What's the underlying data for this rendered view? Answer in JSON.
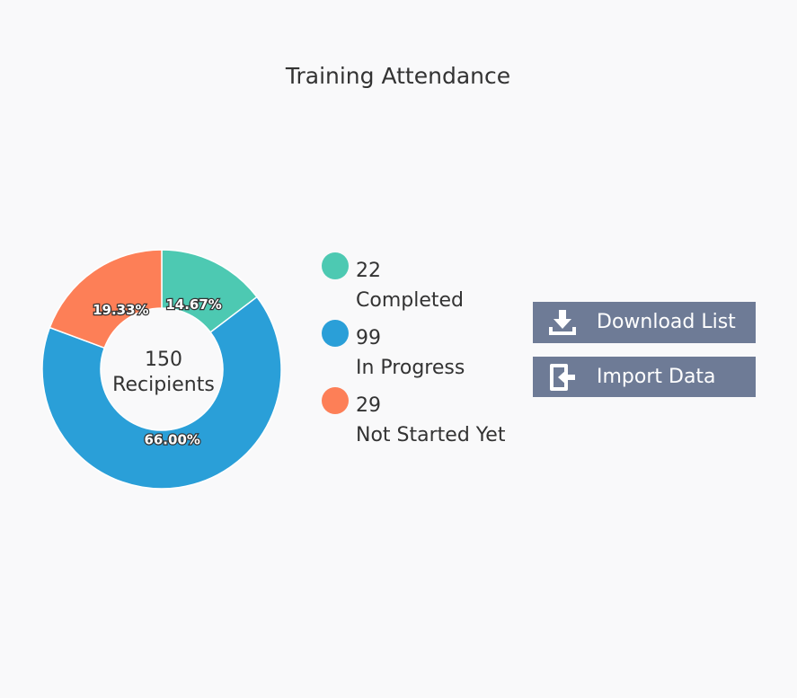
{
  "chart_data": {
    "type": "donut",
    "title": "Training Attendance",
    "categories": [
      "Completed",
      "In Progress",
      "Not Started Yet"
    ],
    "values": [
      22,
      99,
      29
    ],
    "slice_labels": [
      "14.67%",
      "66.00%",
      "19.33%"
    ],
    "colors": [
      "#4dc9b2",
      "#2a9fd8",
      "#fd7f57"
    ],
    "center_value": 150,
    "center_label": "Recipients"
  },
  "buttons": [
    "Download List",
    "Import Data"
  ]
}
